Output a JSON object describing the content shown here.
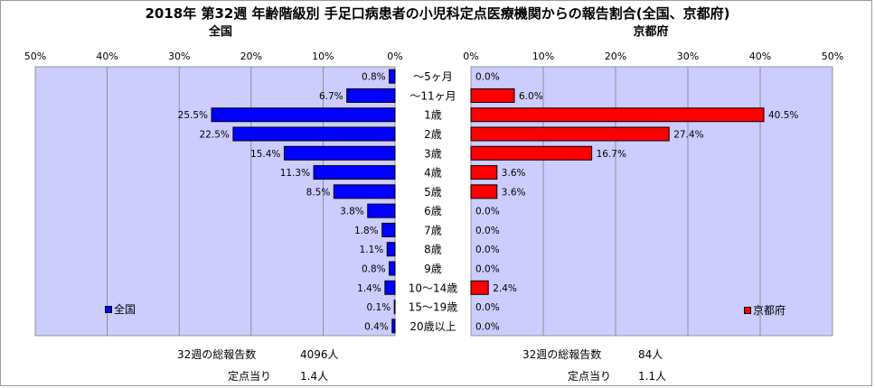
{
  "title": "2018年 第32週 年齢階級別 手足口病患者の小児科定点医療機関からの報告割合(全国、京都府)",
  "left_panel_title": "全国",
  "right_panel_title": "京都府",
  "colors": {
    "plot_background": "#ccccff",
    "national_bar": "#0000ff",
    "kyoto_bar": "#ff0000",
    "bar_outline": "#000000",
    "gridline": "#808080"
  },
  "chart_data": {
    "type": "bar",
    "orientation": "horizontal-population-pyramid",
    "categories": [
      "～5ヶ月",
      "～11ヶ月",
      "1歳",
      "2歳",
      "3歳",
      "4歳",
      "5歳",
      "6歳",
      "7歳",
      "8歳",
      "9歳",
      "10～14歳",
      "15～19歳",
      "20歳以上"
    ],
    "series": [
      {
        "name": "全国",
        "side": "left",
        "values": [
          0.8,
          6.7,
          25.5,
          22.5,
          15.4,
          11.3,
          8.5,
          3.8,
          1.8,
          1.1,
          0.8,
          1.4,
          0.1,
          0.4
        ],
        "value_labels": [
          "0.8%",
          "6.7%",
          "25.5%",
          "22.5%",
          "15.4%",
          "11.3%",
          "8.5%",
          "3.8%",
          "1.8%",
          "1.1%",
          "0.8%",
          "1.4%",
          "0.1%",
          "0.4%"
        ]
      },
      {
        "name": "京都府",
        "side": "right",
        "values": [
          0.0,
          6.0,
          40.5,
          27.4,
          16.7,
          3.6,
          3.6,
          0.0,
          0.0,
          0.0,
          0.0,
          2.4,
          0.0,
          0.0
        ],
        "value_labels": [
          "0.0%",
          "6.0%",
          "40.5%",
          "27.4%",
          "16.7%",
          "3.6%",
          "3.6%",
          "0.0%",
          "0.0%",
          "0.0%",
          "0.0%",
          "2.4%",
          "0.0%",
          "0.0%"
        ]
      }
    ],
    "xlim": [
      0,
      50
    ],
    "x_ticks": [
      0,
      10,
      20,
      30,
      40,
      50
    ],
    "x_tick_labels": [
      "0%",
      "10%",
      "20%",
      "30%",
      "40%",
      "50%"
    ],
    "grid": true,
    "legend_placement": "bottom-left of each panel"
  },
  "footer": {
    "national_total_label": "32週の総報告数",
    "national_total_value": "4096人",
    "national_per_site_label": "定点当り",
    "national_per_site_value": "1.4人",
    "kyoto_total_label": "32週の総報告数",
    "kyoto_total_value": "84人",
    "kyoto_per_site_label": "定点当り",
    "kyoto_per_site_value": "1.1人"
  }
}
